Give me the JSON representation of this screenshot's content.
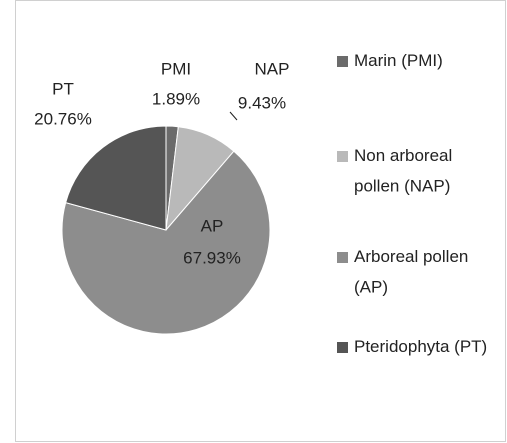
{
  "chart_data": {
    "type": "pie",
    "categories": [
      "Marin (PMI)",
      "Non arboreal pollen (NAP)",
      "Arboreal pollen (AP)",
      "Pteridophyta (PT)"
    ],
    "label_names": [
      "PMI",
      "NAP",
      "AP",
      "PT"
    ],
    "values": [
      1.89,
      9.43,
      67.93,
      20.76
    ],
    "value_labels": [
      "1.89%",
      "9.43%",
      "67.93%",
      "20.76%"
    ],
    "colors": [
      "#6b6b6b",
      "#b9b9b9",
      "#8d8d8d",
      "#555555"
    ],
    "legend": "right"
  }
}
